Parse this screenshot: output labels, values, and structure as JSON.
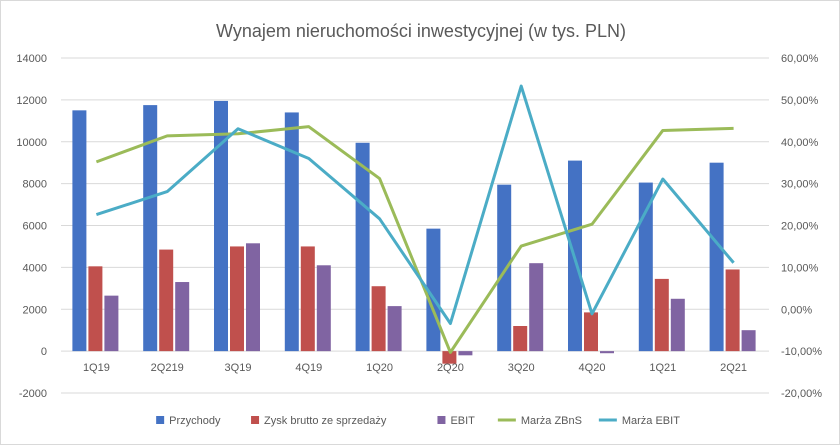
{
  "chart_data": {
    "type": "bar",
    "title": "Wynajem nieruchomości inwestycyjnej (w tys. PLN)",
    "categories": [
      "1Q19",
      "2Q219",
      "3Q19",
      "4Q19",
      "1Q20",
      "2Q20",
      "3Q20",
      "4Q20",
      "1Q21",
      "2Q21"
    ],
    "y_left": {
      "min": -2000,
      "max": 14000,
      "step": 2000,
      "tick_labels": [
        "-2000",
        "0",
        "2000",
        "4000",
        "6000",
        "8000",
        "10000",
        "12000",
        "14000"
      ]
    },
    "y_right": {
      "min": -0.2,
      "max": 0.6,
      "step": 0.1,
      "tick_labels": [
        "-20,00%",
        "-10,00%",
        "0,00%",
        "10,00%",
        "20,00%",
        "30,00%",
        "40,00%",
        "50,00%",
        "60,00%"
      ]
    },
    "bar_series": [
      {
        "name": "Przychody",
        "color": "#4472c4",
        "values": [
          11500,
          11750,
          11950,
          11400,
          9950,
          5850,
          7950,
          9100,
          8050,
          9000
        ]
      },
      {
        "name": "Zysk brutto ze sprzedaży",
        "color": "#c0504d",
        "values": [
          4050,
          4850,
          5000,
          5000,
          3100,
          -600,
          1200,
          1850,
          3450,
          3900
        ]
      },
      {
        "name": "EBIT",
        "color": "#8064a2",
        "values": [
          2650,
          3300,
          5150,
          4100,
          2150,
          -200,
          4200,
          -100,
          2500,
          1000
        ]
      }
    ],
    "line_series": [
      {
        "name": "Marża ZBnS",
        "color": "#9bbb59",
        "values": [
          0.352,
          0.414,
          0.419,
          0.436,
          0.312,
          -0.103,
          0.151,
          0.203,
          0.427,
          0.432
        ]
      },
      {
        "name": "Marża EBIT",
        "color": "#4bacc6",
        "values": [
          0.226,
          0.281,
          0.431,
          0.36,
          0.216,
          -0.034,
          0.533,
          -0.011,
          0.311,
          0.111
        ]
      }
    ],
    "grid": true,
    "legend_position": "bottom"
  }
}
